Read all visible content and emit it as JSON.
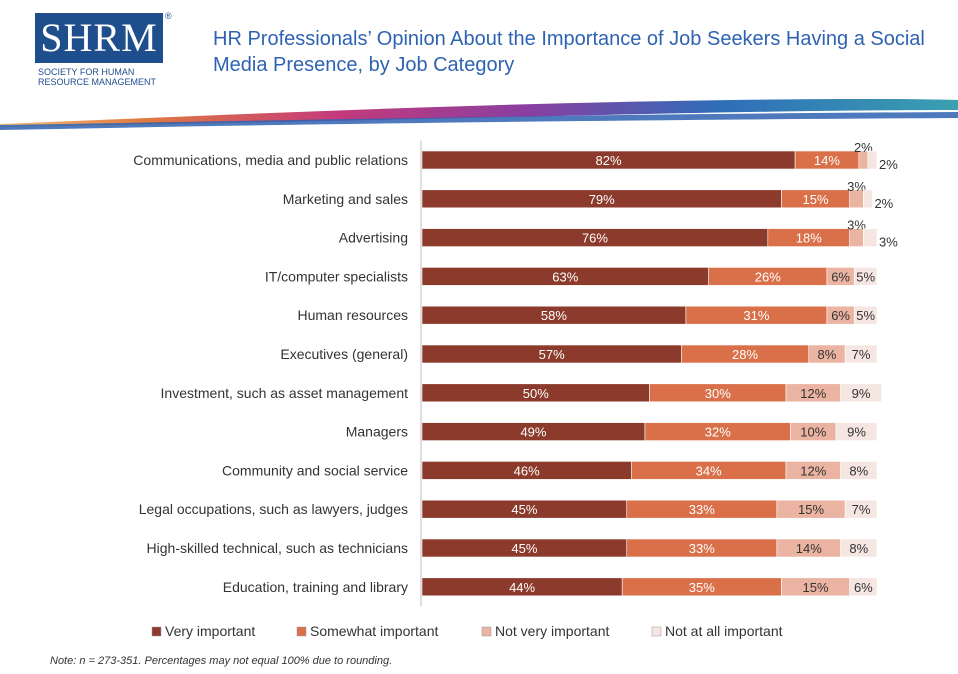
{
  "logo": {
    "text": "SHRM",
    "registered": "®",
    "subtitle": "SOCIETY FOR HUMAN\nRESOURCE MANAGEMENT",
    "color": "#1f4e8c"
  },
  "title": "HR Professionals’ Opinion About the Importance of Job Seekers Having a Social Media Presence, by Job Category",
  "note": "Note: n = 273-351. Percentages may not equal 100% due to rounding.",
  "chart_data": {
    "type": "bar",
    "orientation": "horizontal",
    "stacked": true,
    "categories": [
      "Communications, media and public relations",
      "Marketing and sales",
      "Advertising",
      "IT/computer specialists",
      "Human resources",
      "Executives (general)",
      "Investment, such as asset management",
      "Managers",
      "Community and social service",
      "Legal occupations, such as lawyers, judges",
      "High-skilled technical, such as technicians",
      "Education, training and library"
    ],
    "series": [
      {
        "name": "Very important",
        "color": "#8b3a2b",
        "values": [
          82,
          79,
          76,
          63,
          58,
          57,
          50,
          49,
          46,
          45,
          45,
          44
        ]
      },
      {
        "name": "Somewhat important",
        "color": "#d9704a",
        "values": [
          14,
          15,
          18,
          26,
          31,
          28,
          30,
          32,
          34,
          33,
          33,
          35
        ]
      },
      {
        "name": "Not very important",
        "color": "#ebb3a1",
        "values": [
          2,
          3,
          3,
          6,
          6,
          8,
          12,
          10,
          12,
          15,
          14,
          15
        ]
      },
      {
        "name": "Not at all important",
        "color": "#f5e6e1",
        "values": [
          2,
          2,
          3,
          5,
          5,
          7,
          9,
          9,
          8,
          7,
          8,
          6
        ]
      }
    ],
    "value_suffix": "%",
    "legend": "bottom",
    "grid": false
  }
}
